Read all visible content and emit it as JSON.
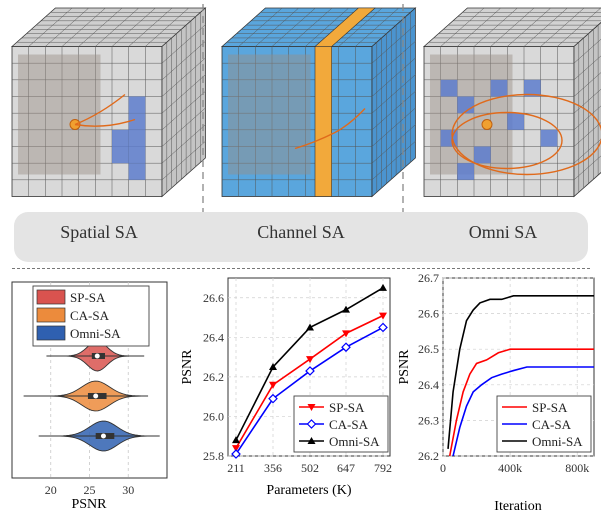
{
  "panels": [
    {
      "label": "Spatial SA",
      "icon": "spatial-cube-icon"
    },
    {
      "label": "Channel SA",
      "icon": "channel-cube-icon"
    },
    {
      "label": "Omni SA",
      "icon": "omni-cube-icon"
    }
  ],
  "colors": {
    "sp": "#d9534f",
    "ca": "#ec8b3c",
    "omni": "#2f60b0",
    "line_sp": "#ff0000",
    "line_ca": "#0000ff",
    "line_omni": "#000000",
    "channel_band": "#f2a93b",
    "cube_blue": "#5aa6dd",
    "band": "#e4e4e4"
  },
  "chart_data": [
    {
      "type": "violin",
      "legend": [
        "SP-SA",
        "CA-SA",
        "Omni-SA"
      ],
      "xlabel": "PSNR",
      "xticks": [
        20,
        25,
        30
      ],
      "xlim": [
        15,
        35
      ],
      "grid": true,
      "legend_position": "top",
      "series": [
        {
          "name": "SP-SA",
          "median": 26.0,
          "q1": 25.3,
          "q3": 27.0,
          "min": 19.5,
          "max": 32.0
        },
        {
          "name": "CA-SA",
          "median": 25.8,
          "q1": 24.8,
          "q3": 27.2,
          "min": 16.5,
          "max": 32.5
        },
        {
          "name": "Omni-SA",
          "median": 26.8,
          "q1": 25.8,
          "q3": 28.2,
          "min": 18.5,
          "max": 34.0
        }
      ]
    },
    {
      "type": "line",
      "x": [
        211,
        356,
        502,
        647,
        792
      ],
      "xlabel": "Parameters (K)",
      "ylabel": "PSNR",
      "ylim": [
        25.8,
        26.7
      ],
      "yticks": [
        25.8,
        26.0,
        26.2,
        26.4,
        26.6
      ],
      "grid": true,
      "legend_position": "bottom-right",
      "series": [
        {
          "name": "SP-SA",
          "values": [
            25.84,
            26.16,
            26.29,
            26.42,
            26.51
          ]
        },
        {
          "name": "CA-SA",
          "values": [
            25.81,
            26.09,
            26.23,
            26.35,
            26.45
          ]
        },
        {
          "name": "Omni-SA",
          "values": [
            25.88,
            26.25,
            26.45,
            26.54,
            26.65
          ]
        }
      ]
    },
    {
      "type": "line",
      "xlabel": "Iteration",
      "ylabel": "PSNR",
      "xlim": [
        0,
        900000
      ],
      "ylim": [
        26.2,
        26.7
      ],
      "xticks": [
        "0",
        "400k",
        "800k"
      ],
      "yticks": [
        26.2,
        26.3,
        26.4,
        26.5,
        26.6,
        26.7
      ],
      "grid": true,
      "legend_position": "bottom-right",
      "series": [
        {
          "name": "SP-SA",
          "x": [
            40000,
            80000,
            120000,
            160000,
            200000,
            260000,
            330000,
            400000,
            500000,
            600000,
            700000,
            800000,
            900000
          ],
          "values": [
            26.2,
            26.3,
            26.38,
            26.43,
            26.46,
            26.47,
            26.49,
            26.5,
            26.5,
            26.5,
            26.5,
            26.5,
            26.5
          ]
        },
        {
          "name": "CA-SA",
          "x": [
            60000,
            100000,
            140000,
            180000,
            230000,
            290000,
            350000,
            420000,
            500000,
            600000,
            700000,
            800000,
            900000
          ],
          "values": [
            26.2,
            26.28,
            26.34,
            26.38,
            26.4,
            26.42,
            26.43,
            26.44,
            26.45,
            26.45,
            26.45,
            26.45,
            26.45
          ]
        },
        {
          "name": "Omni-SA",
          "x": [
            30000,
            60000,
            100000,
            140000,
            180000,
            220000,
            280000,
            350000,
            420000,
            500000,
            600000,
            700000,
            800000,
            900000
          ],
          "values": [
            26.22,
            26.38,
            26.5,
            26.58,
            26.61,
            26.63,
            26.64,
            26.64,
            26.65,
            26.65,
            26.65,
            26.65,
            26.65,
            26.65
          ]
        }
      ]
    }
  ]
}
